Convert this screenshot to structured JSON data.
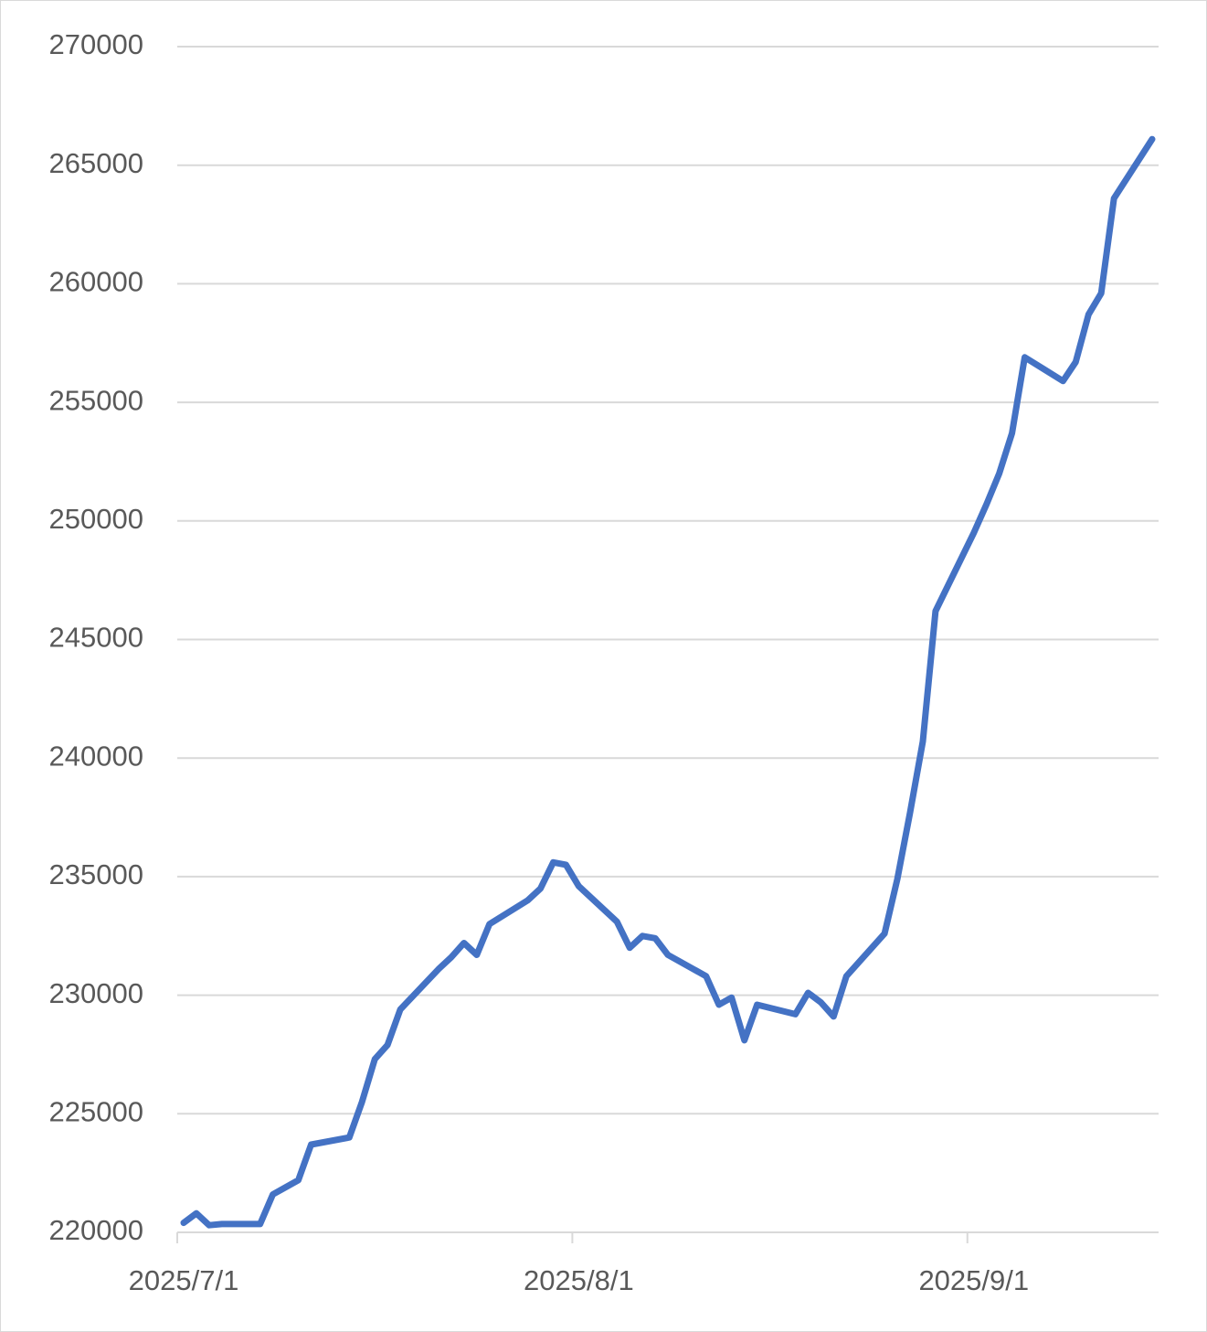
{
  "chart_data": {
    "type": "line",
    "x": [
      "2025/7/1",
      "2025/7/2",
      "2025/7/3",
      "2025/7/4",
      "2025/7/7",
      "2025/7/8",
      "2025/7/9",
      "2025/7/10",
      "2025/7/11",
      "2025/7/14",
      "2025/7/15",
      "2025/7/16",
      "2025/7/17",
      "2025/7/18",
      "2025/7/21",
      "2025/7/22",
      "2025/7/23",
      "2025/7/24",
      "2025/7/25",
      "2025/7/28",
      "2025/7/29",
      "2025/7/30",
      "2025/7/31",
      "2025/8/1",
      "2025/8/4",
      "2025/8/5",
      "2025/8/6",
      "2025/8/7",
      "2025/8/8",
      "2025/8/11",
      "2025/8/12",
      "2025/8/13",
      "2025/8/14",
      "2025/8/15",
      "2025/8/18",
      "2025/8/19",
      "2025/8/20",
      "2025/8/21",
      "2025/8/22",
      "2025/8/25",
      "2025/8/26",
      "2025/8/27",
      "2025/8/28",
      "2025/8/29",
      "2025/9/1",
      "2025/9/2",
      "2025/9/3",
      "2025/9/4",
      "2025/9/5",
      "2025/9/8",
      "2025/9/9",
      "2025/9/10",
      "2025/9/11",
      "2025/9/12",
      "2025/9/15"
    ],
    "values": [
      220400,
      220800,
      220300,
      220350,
      220350,
      221600,
      221900,
      222200,
      223700,
      224000,
      225500,
      227300,
      227900,
      229400,
      231100,
      231600,
      232200,
      231700,
      233000,
      234000,
      234500,
      235600,
      235500,
      234600,
      233100,
      232000,
      232500,
      232400,
      231700,
      230800,
      229600,
      229900,
      228100,
      229600,
      229200,
      230100,
      229700,
      229100,
      230800,
      232600,
      234900,
      237700,
      240700,
      246200,
      249500,
      250700,
      252000,
      253700,
      256900,
      255900,
      256700,
      258700,
      259600,
      263600,
      266100
    ],
    "color": "#4472c4",
    "xlim": [
      "2025/7/1",
      "2025/9/16"
    ],
    "xticks": [
      "2025/7/1",
      "2025/8/1",
      "2025/9/1"
    ],
    "ylim": [
      220000,
      270000
    ],
    "yticks": [
      220000,
      225000,
      230000,
      235000,
      240000,
      245000,
      250000,
      255000,
      260000,
      265000,
      270000
    ],
    "grid": true
  }
}
